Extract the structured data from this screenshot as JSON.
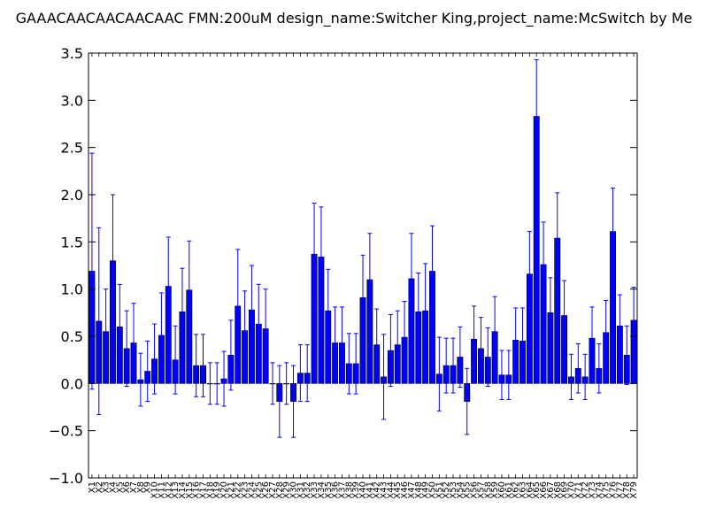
{
  "chart_data": {
    "type": "bar",
    "title": "GAAACAACAACAACAAC  FMN:200uM  design_name:Switcher King,project_name:McSwitch by Me",
    "xlabel": "",
    "ylabel": "",
    "ylim": [
      -1.0,
      3.5
    ],
    "yticks": [
      "3.5",
      "3.0",
      "2.5",
      "2.0",
      "1.5",
      "1.0",
      "0.5",
      "0.0",
      "−0.5",
      "−1.0"
    ],
    "grid": false,
    "bar_color": "#0000ff",
    "errorbar_color": "#0000ff",
    "categories": [
      "X1",
      "X2",
      "X3",
      "X4",
      "X5",
      "X6",
      "X7",
      "X8",
      "X9",
      "X10",
      "X11",
      "X12",
      "X13",
      "X14",
      "X15",
      "X16",
      "X17",
      "X18",
      "X19",
      "X20",
      "X21",
      "X22",
      "X23",
      "X24",
      "X25",
      "X26",
      "X27",
      "X28",
      "X29",
      "X30",
      "X31",
      "X32",
      "X33",
      "X34",
      "X35",
      "X36",
      "X37",
      "X38",
      "X39",
      "X40",
      "X41",
      "X42",
      "X43",
      "X44",
      "X45",
      "X46",
      "X47",
      "X48",
      "X49",
      "X50",
      "X51",
      "X52",
      "X53",
      "X54",
      "X55",
      "X56",
      "X57",
      "X58",
      "X59",
      "X60",
      "X61",
      "X62",
      "X63",
      "X64",
      "X65",
      "X66",
      "X67",
      "X68",
      "X69",
      "X70",
      "X71",
      "X72",
      "X73",
      "X74",
      "X75",
      "X76",
      "X77",
      "X78",
      "X79"
    ],
    "values": [
      1.19,
      0.66,
      0.55,
      1.3,
      0.6,
      0.37,
      0.43,
      0.04,
      0.13,
      0.26,
      0.51,
      1.03,
      0.25,
      0.76,
      0.99,
      0.19,
      0.19,
      0.0,
      0.0,
      0.05,
      0.3,
      0.82,
      0.56,
      0.78,
      0.63,
      0.58,
      0.0,
      -0.19,
      0.0,
      -0.19,
      0.11,
      0.11,
      1.37,
      1.34,
      0.77,
      0.43,
      0.43,
      0.21,
      0.21,
      0.91,
      1.1,
      0.41,
      0.07,
      0.35,
      0.41,
      0.49,
      1.11,
      0.76,
      0.77,
      1.19,
      0.1,
      0.19,
      0.19,
      0.28,
      -0.19,
      0.47,
      0.37,
      0.28,
      0.55,
      0.09,
      0.09,
      0.46,
      0.45,
      1.16,
      2.83,
      1.26,
      0.75,
      1.54,
      0.72,
      0.07,
      0.16,
      0.07,
      0.48,
      0.16,
      0.54,
      1.61,
      0.61,
      0.3,
      0.67
    ],
    "errors": [
      1.25,
      0.99,
      0.45,
      0.7,
      0.45,
      0.4,
      0.42,
      0.28,
      0.32,
      0.37,
      0.45,
      0.52,
      0.36,
      0.46,
      0.52,
      0.33,
      0.33,
      0.22,
      0.22,
      0.29,
      0.37,
      0.6,
      0.42,
      0.47,
      0.42,
      0.42,
      0.22,
      0.38,
      0.22,
      0.38,
      0.3,
      0.3,
      0.54,
      0.53,
      0.44,
      0.38,
      0.38,
      0.32,
      0.32,
      0.45,
      0.49,
      0.38,
      0.45,
      0.38,
      0.36,
      0.38,
      0.48,
      0.41,
      0.5,
      0.48,
      0.39,
      0.29,
      0.29,
      0.32,
      0.35,
      0.35,
      0.33,
      0.31,
      0.37,
      0.26,
      0.26,
      0.34,
      0.35,
      0.45,
      0.6,
      0.45,
      0.37,
      0.48,
      0.37,
      0.24,
      0.26,
      0.24,
      0.33,
      0.26,
      0.34,
      0.46,
      0.33,
      0.31,
      0.35
    ]
  }
}
